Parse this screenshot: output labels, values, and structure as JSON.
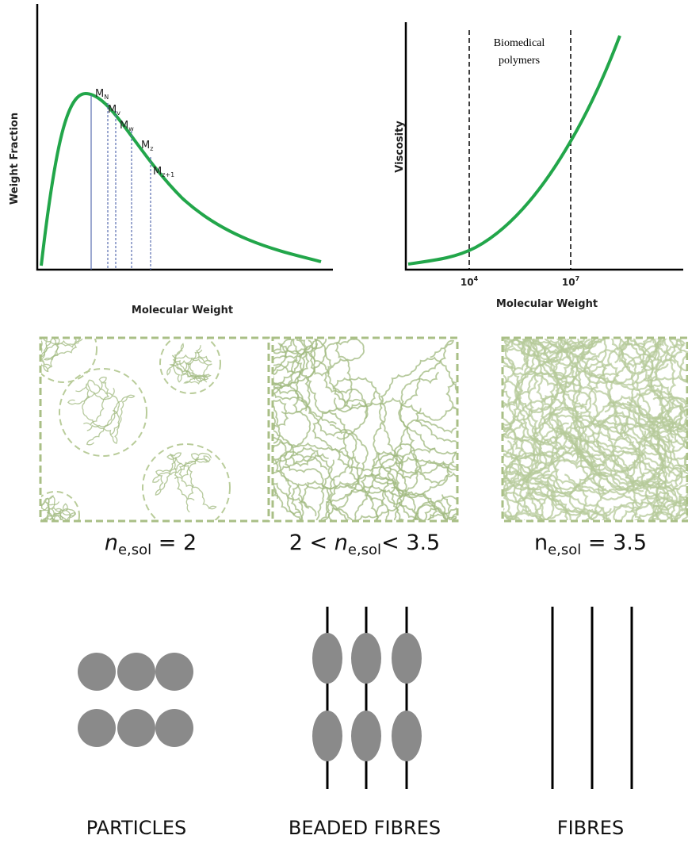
{
  "distribution_plot": {
    "y_label": "Weight Fraction",
    "x_label": "Molecular Weight",
    "averages": [
      {
        "main": "M",
        "sub": "N"
      },
      {
        "main": "M",
        "sub": "v"
      },
      {
        "main": "M",
        "sub": "w"
      },
      {
        "main": "M",
        "sub": "z"
      },
      {
        "main": "M",
        "sub": "z+1"
      }
    ]
  },
  "viscosity_plot": {
    "y_label": "Viscosity",
    "x_label": "Molecular Weight",
    "region_label": [
      "Biomedical",
      "polymers"
    ],
    "ticks": [
      {
        "base": "10",
        "exp": "4"
      },
      {
        "base": "10",
        "exp": "7"
      }
    ]
  },
  "regimes": [
    {
      "equation": [
        {
          "text": "n",
          "style": "italic"
        },
        {
          "text": "e,sol",
          "style": "sub"
        },
        {
          "text": " = 2",
          "style": "normal"
        }
      ],
      "label": "PARTICLES"
    },
    {
      "equation": [
        {
          "text": "2 < ",
          "style": "normal"
        },
        {
          "text": "n",
          "style": "italic"
        },
        {
          "text": "e,sol",
          "style": "sub"
        },
        {
          "text": "< 3.5",
          "style": "normal"
        }
      ],
      "label": "BEADED FIBRES"
    },
    {
      "equation": [
        {
          "text": "n",
          "style": "normal"
        },
        {
          "text": "e,sol",
          "style": "sub"
        },
        {
          "text": " = 3.5",
          "style": "normal"
        }
      ],
      "label": "FIBRES"
    }
  ]
}
